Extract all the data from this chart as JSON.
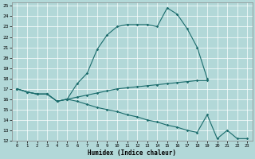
{
  "xlabel": "Humidex (Indice chaleur)",
  "background_color": "#b2d8d8",
  "grid_color": "#ffffff",
  "line_color": "#1a6b6b",
  "xlim": [
    -0.5,
    23.5
  ],
  "ylim": [
    12,
    25.3
  ],
  "yticks": [
    12,
    13,
    14,
    15,
    16,
    17,
    18,
    19,
    20,
    21,
    22,
    23,
    24,
    25
  ],
  "xticks": [
    0,
    1,
    2,
    3,
    4,
    5,
    6,
    7,
    8,
    9,
    10,
    11,
    12,
    13,
    14,
    15,
    16,
    17,
    18,
    19,
    20,
    21,
    22,
    23
  ],
  "line1_x": [
    0,
    1,
    2,
    3,
    4,
    5,
    6,
    7,
    8,
    9,
    10,
    11,
    12,
    13,
    14,
    15,
    16,
    17,
    18,
    19
  ],
  "line1_y": [
    17,
    16.7,
    16.5,
    16.5,
    15.8,
    16.0,
    17.5,
    18.5,
    20.8,
    22.2,
    23.0,
    23.2,
    23.2,
    23.2,
    23.0,
    24.8,
    24.2,
    22.8,
    21.0,
    18.0
  ],
  "line2_x": [
    0,
    1,
    2,
    3,
    4,
    5,
    6,
    7,
    8,
    9,
    10,
    11,
    12,
    13,
    14,
    15,
    16,
    17,
    18,
    19
  ],
  "line2_y": [
    17,
    16.7,
    16.5,
    16.5,
    15.8,
    16.0,
    16.2,
    16.4,
    16.6,
    16.8,
    17.0,
    17.1,
    17.2,
    17.3,
    17.4,
    17.5,
    17.6,
    17.7,
    17.8,
    17.8
  ],
  "line3_x": [
    0,
    1,
    2,
    3,
    4,
    5,
    6,
    7,
    8,
    9,
    10,
    11,
    12,
    13,
    14,
    15,
    16,
    17,
    18,
    19,
    20,
    21,
    22,
    23
  ],
  "line3_y": [
    17,
    16.7,
    16.5,
    16.5,
    15.8,
    16.0,
    15.8,
    15.5,
    15.2,
    15.0,
    14.8,
    14.5,
    14.3,
    14.0,
    13.8,
    13.5,
    13.3,
    13.0,
    12.8,
    14.5,
    12.2,
    13.0,
    12.2,
    12.2
  ]
}
